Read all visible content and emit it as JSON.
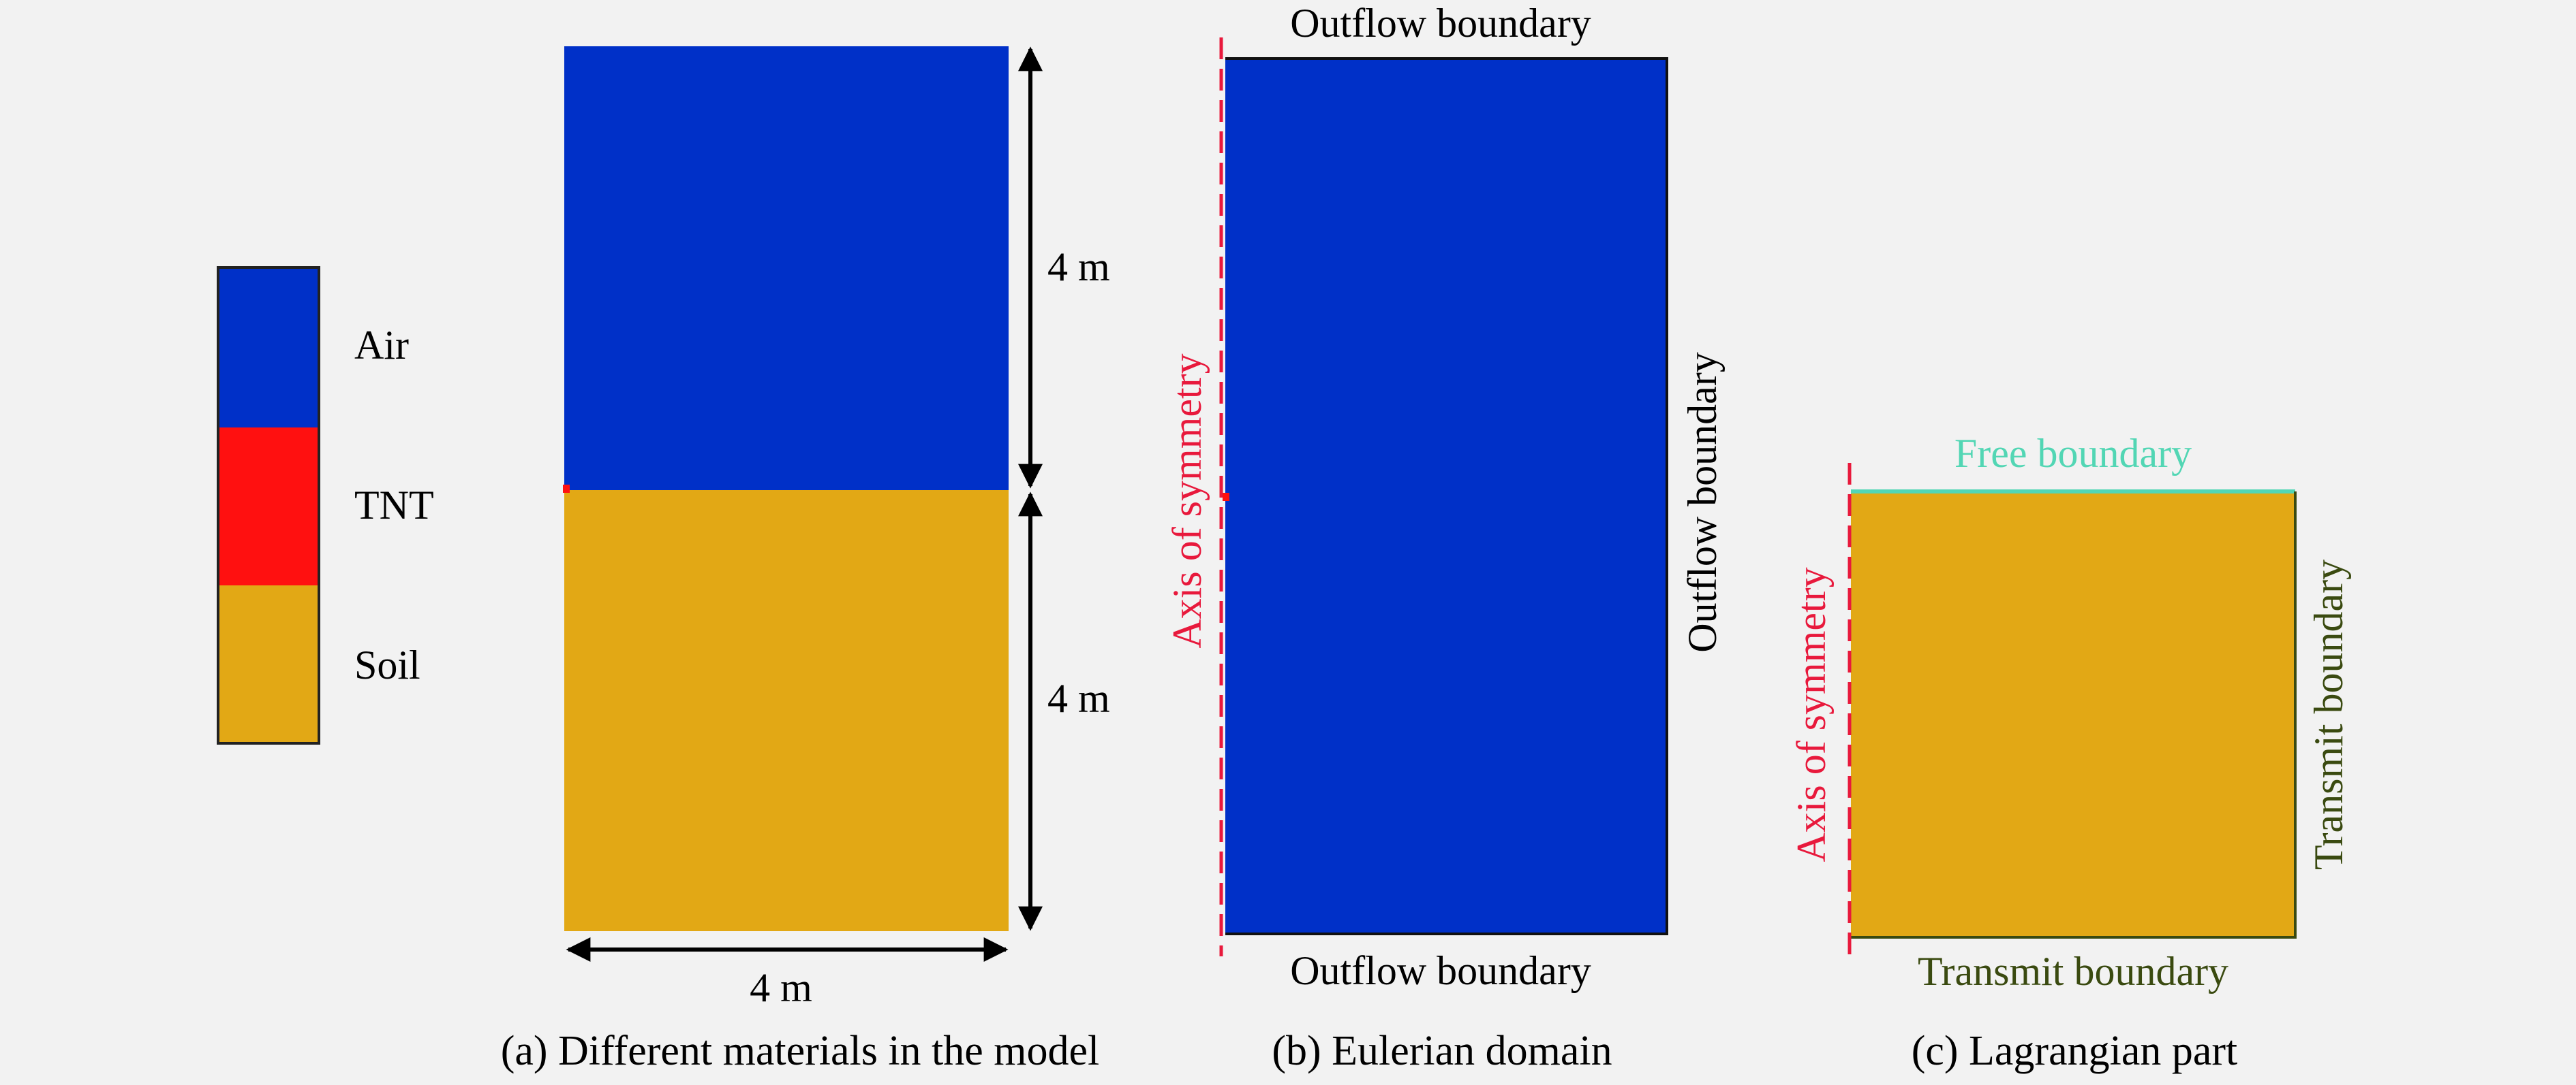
{
  "legend": {
    "items": [
      {
        "label": "Air",
        "color": "#0030c8"
      },
      {
        "label": "TNT",
        "color": "#ff1010"
      },
      {
        "label": "Soil",
        "color": "#e2a815"
      }
    ]
  },
  "panel_a": {
    "dim_top": "4 m",
    "dim_bottom": "4 m",
    "dim_width": "4 m",
    "caption": "(a) Different materials in the model"
  },
  "panel_b": {
    "top_label": "Outflow boundary",
    "right_label": "Outflow boundary",
    "bottom_label": "Outflow boundary",
    "axis_label": "Axis of symmetry",
    "caption": "(b) Eulerian domain"
  },
  "panel_c": {
    "top_label": "Free boundary",
    "right_label": "Transmit boundary",
    "bottom_label": "Transmit boundary",
    "axis_label": "Axis of symmetry",
    "caption": "(c) Lagrangian part"
  },
  "colors": {
    "air": "#0030c8",
    "tnt": "#ff1010",
    "soil": "#e2a815",
    "axis": "#e8193c",
    "free_boundary": "#52d6b4",
    "transmit_boundary": "#3a4a10",
    "dimension": "#000000"
  }
}
